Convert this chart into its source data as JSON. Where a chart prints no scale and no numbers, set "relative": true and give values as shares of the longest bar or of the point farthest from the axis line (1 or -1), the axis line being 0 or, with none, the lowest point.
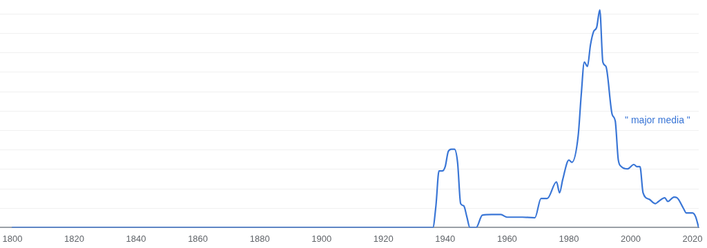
{
  "chart_data": {
    "type": "line",
    "relative": true,
    "grid": "y",
    "marker": "none",
    "line_style": "solid",
    "legend": false,
    "xlim": [
      1796,
      2022
    ],
    "xticks": [
      1800,
      1820,
      1840,
      1860,
      1880,
      1900,
      1920,
      1940,
      1960,
      1980,
      2000,
      2020
    ],
    "series": [
      {
        "name": "\" major media \"",
        "color": "#3a76d6",
        "x": [
          1800,
          1936,
          1937,
          1938,
          1939,
          1940,
          1941,
          1942,
          1943,
          1944,
          1945,
          1946,
          1947,
          1948,
          1950,
          1952,
          1955,
          1958,
          1960,
          1965,
          1969,
          1971,
          1973,
          1976,
          1977,
          1978,
          1980,
          1981,
          1983,
          1984,
          1985,
          1986,
          1987,
          1988,
          1989,
          1990,
          1991,
          1992,
          1994,
          1995,
          1996,
          1997,
          1999,
          2001,
          2002,
          2003,
          2004,
          2006,
          2008,
          2009,
          2011,
          2012,
          2014,
          2015,
          2017,
          2018,
          2020,
          2021,
          2022
        ],
        "values": [
          0,
          0,
          0.1,
          0.26,
          0.26,
          0.28,
          0.35,
          0.36,
          0.36,
          0.3,
          0.11,
          0.1,
          0.05,
          0,
          0,
          0.057,
          0.06,
          0.06,
          0.048,
          0.048,
          0.045,
          0.134,
          0.134,
          0.21,
          0.16,
          0.22,
          0.31,
          0.3,
          0.42,
          0.61,
          0.76,
          0.74,
          0.84,
          0.9,
          0.92,
          1,
          0.76,
          0.74,
          0.52,
          0.49,
          0.31,
          0.28,
          0.27,
          0.29,
          0.28,
          0.28,
          0.16,
          0.13,
          0.11,
          0.12,
          0.137,
          0.12,
          0.14,
          0.137,
          0.09,
          0.067,
          0.067,
          0.05,
          0
        ]
      }
    ]
  }
}
